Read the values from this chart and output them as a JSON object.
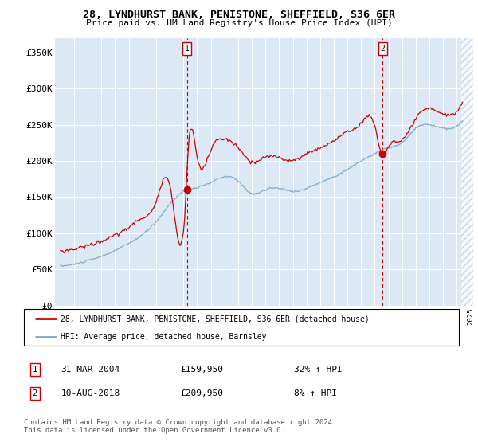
{
  "title": "28, LYNDHURST BANK, PENISTONE, SHEFFIELD, S36 6ER",
  "subtitle": "Price paid vs. HM Land Registry's House Price Index (HPI)",
  "ylim": [
    0,
    370000
  ],
  "yticks": [
    0,
    50000,
    100000,
    150000,
    200000,
    250000,
    300000,
    350000
  ],
  "ytick_labels": [
    "£0",
    "£50K",
    "£100K",
    "£150K",
    "£200K",
    "£250K",
    "£300K",
    "£350K"
  ],
  "bg_color": "#dde8f5",
  "grid_color": "#ffffff",
  "red_line_color": "#cc0000",
  "blue_line_color": "#7faacc",
  "t1_year": 2004.25,
  "t1_price": 159950,
  "t2_year": 2018.583,
  "t2_price": 209950,
  "legend1_text": "28, LYNDHURST BANK, PENISTONE, SHEFFIELD, S36 6ER (detached house)",
  "legend2_text": "HPI: Average price, detached house, Barnsley",
  "note1_label": "1",
  "note1_date": "31-MAR-2004",
  "note1_price": "£159,950",
  "note1_hpi": "32% ↑ HPI",
  "note2_label": "2",
  "note2_date": "10-AUG-2018",
  "note2_price": "£209,950",
  "note2_hpi": "8% ↑ HPI",
  "footer": "Contains HM Land Registry data © Crown copyright and database right 2024.\nThis data is licensed under the Open Government Licence v3.0."
}
